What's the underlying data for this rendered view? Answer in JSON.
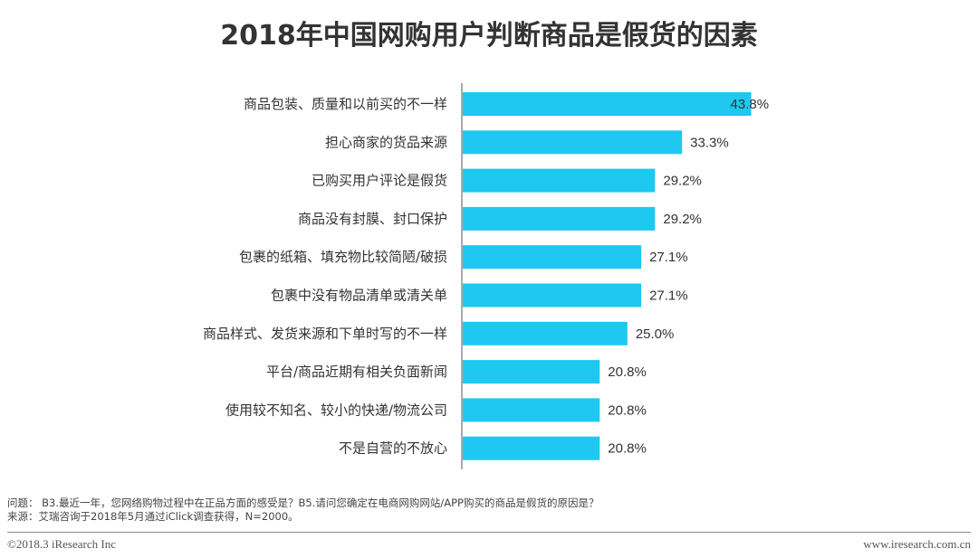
{
  "chart_data": {
    "type": "bar",
    "orientation": "horizontal",
    "title": "2018年中国网购用户判断商品是假货的因素",
    "categories": [
      "商品包装、质量和以前买的不一样",
      "担心商家的货品来源",
      "已购买用户评论是假货",
      "商品没有封膜、封口保护",
      "包裹的纸箱、填充物比较简陋/破损",
      "包裹中没有物品清单或清关单",
      "商品样式、发货来源和下单时写的不一样",
      "平台/商品近期有相关负面新闻",
      "使用较不知名、较小的快递/物流公司",
      "不是自营的不放心"
    ],
    "values": [
      43.8,
      33.3,
      29.2,
      29.2,
      27.1,
      27.1,
      25.0,
      20.8,
      20.8,
      20.8
    ],
    "value_labels": [
      "43.8%",
      "33.3%",
      "29.2%",
      "29.2%",
      "27.1%",
      "27.1%",
      "25.0%",
      "20.8%",
      "20.8%",
      "20.8%"
    ],
    "xlim": [
      0,
      44
    ],
    "unit": "%",
    "bar_color": "#1ec8f0",
    "grid": false,
    "legend": "none"
  },
  "footer": {
    "question": "问题：  B3.最近一年，您网络购物过程中在正品方面的感受是？B5.请问您确定在电商网购网站/APP购买的商品是假货的原因是？",
    "source": "来源：艾瑞咨询于2018年5月通过iClick调查获得，N=2000。",
    "copyright": "©2018.3 iResearch Inc",
    "website": "www.iresearch.com.cn"
  }
}
